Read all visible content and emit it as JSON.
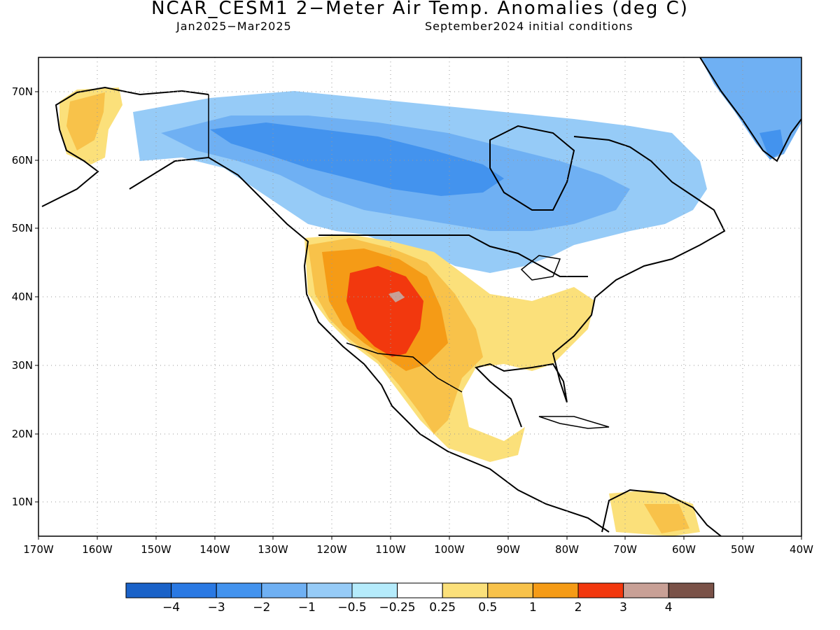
{
  "title": "NCAR_CESM1 2−Meter Air Temp. Anomalies (deg C)",
  "subtitle_left": "Jan2025−Mar2025",
  "subtitle_right": "September2024 initial conditions",
  "map": {
    "lon_range": [
      -170,
      -40
    ],
    "lat_range": [
      5,
      75
    ],
    "lon_ticks": [
      "170W",
      "160W",
      "150W",
      "140W",
      "130W",
      "120W",
      "110W",
      "100W",
      "90W",
      "80W",
      "70W",
      "60W",
      "50W",
      "40W"
    ],
    "lat_ticks": [
      "10N",
      "20N",
      "30N",
      "40N",
      "50N",
      "60N",
      "70N"
    ],
    "gridlines": "dotted"
  },
  "colorbar": {
    "colors": [
      "#1a62c8",
      "#2a79e3",
      "#4393ee",
      "#6fb0f3",
      "#96cbf7",
      "#b5ebfb",
      "#ffffff",
      "#fbe07a",
      "#f8c24a",
      "#f59b16",
      "#f2380e",
      "#c8a096",
      "#7a5248"
    ],
    "labels": [
      "−4",
      "−3",
      "−2",
      "−1",
      "−0.5",
      "−0.25",
      "0.25",
      "0.5",
      "1",
      "2",
      "3",
      "4"
    ]
  }
}
